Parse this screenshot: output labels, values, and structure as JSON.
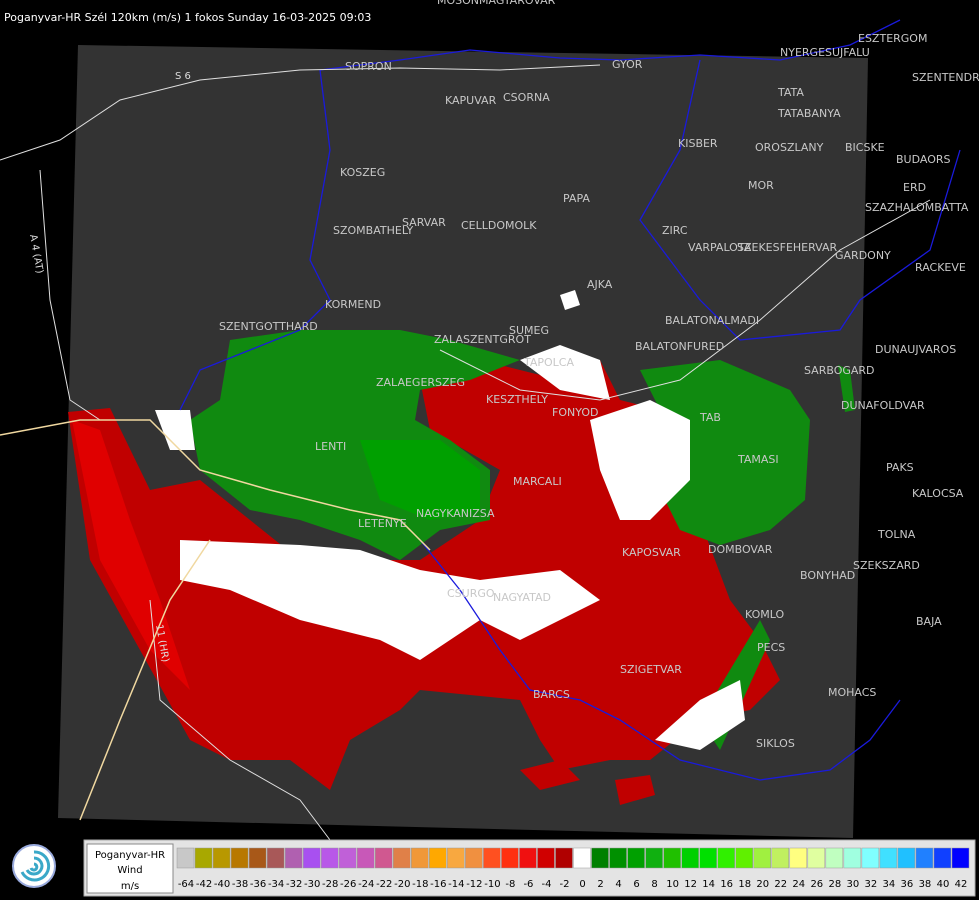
{
  "header": {
    "title": "Poganyvar-HR Szél 120km (m/s) 1 fokos Sunday 16-03-2025 09:03"
  },
  "roads": [
    "S 6",
    "A 4 (AT)",
    "11 (HR)"
  ],
  "cities": [
    "MOSONMAGYAROVAR",
    "SOPRON",
    "GYOR",
    "KAPUVAR",
    "CSORNA",
    "ESZTERGOM",
    "NYERGESUJFALU",
    "TATA",
    "TATABANYA",
    "SZENTENDRE",
    "KISBER",
    "OROSZLANY",
    "BICSKE",
    "BUDAORS",
    "KOSZEG",
    "MOR",
    "ERD",
    "PAPA",
    "SZAZHALOMBATTA",
    "SZOMBATHELY",
    "SARVAR",
    "CELLDOMOLK",
    "ZIRC",
    "VARPALOTA",
    "SZEKESFEHERVAR",
    "GARDONY",
    "RACKEVE",
    "AJKA",
    "KORMEND",
    "SZENTGOTTHARD",
    "SUMEG",
    "ZALASZENTGROT",
    "BALATONALMADI",
    "TAPOLCA",
    "BALATONFURED",
    "DUNAUJVAROS",
    "SARBOGARD",
    "ZALAEGERSZEG",
    "KESZTHELY",
    "FONYOD",
    "DUNAFOLDVAR",
    "TAB",
    "TAMASI",
    "PAKS",
    "LENTI",
    "MARCALI",
    "KALOCSA",
    "LETENYE",
    "NAGYKANIZSA",
    "TOLNA",
    "KAPOSVAR",
    "DOMBOVAR",
    "SZEKSZARD",
    "BONYHAD",
    "CSURGO",
    "NAGYATAD",
    "KOMLO",
    "BAJA",
    "PECS",
    "SZIGETVAR",
    "MOHACS",
    "BARCS",
    "SIKLOS"
  ],
  "legend": {
    "radar": "Poganyvar-HR",
    "quantity": "Wind",
    "unit": "m/s",
    "labels": [
      -64,
      -42,
      -40,
      -38,
      -36,
      -34,
      -32,
      -30,
      -28,
      -26,
      -24,
      -22,
      -20,
      -18,
      -16,
      -14,
      -12,
      -10,
      -8,
      -6,
      -4,
      -2,
      0,
      2,
      4,
      6,
      8,
      10,
      12,
      14,
      16,
      18,
      20,
      22,
      24,
      26,
      28,
      30,
      32,
      34,
      36,
      38,
      40,
      42
    ],
    "colors": [
      "#c8c8c8",
      "#a8a800",
      "#b89800",
      "#b87800",
      "#a85818",
      "#a85858",
      "#b060b0",
      "#a850f0",
      "#b858e8",
      "#c060d8",
      "#c858b8",
      "#d05890",
      "#e08048",
      "#f09838",
      "#ffa800",
      "#f8a840",
      "#f09040",
      "#ff5020",
      "#ff3010",
      "#f01010",
      "#d00000",
      "#b00000",
      "#ffffff",
      "#008000",
      "#009000",
      "#00a000",
      "#10b010",
      "#20c000",
      "#00d000",
      "#00e000",
      "#30f000",
      "#60f000",
      "#a0f040",
      "#c0f060",
      "#ffff80",
      "#e0ffa0",
      "#c0ffc0",
      "#a0ffe0",
      "#80ffff",
      "#40e0ff",
      "#20c0ff",
      "#2080ff",
      "#1040ff",
      "#0000ff"
    ]
  }
}
